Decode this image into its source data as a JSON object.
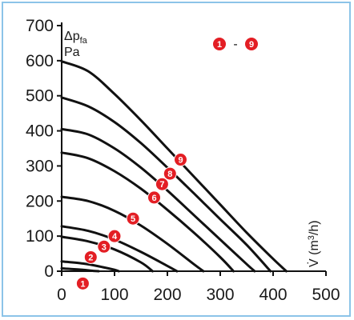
{
  "chart_data": {
    "type": "line",
    "ylabel": {
      "main": "Δp",
      "sub": "fa",
      "unit": "Pa"
    },
    "xlabel": {
      "main": "V̇ (m",
      "sup": "3",
      "tail": "/h)"
    },
    "legend": {
      "from": "1",
      "sep": "-",
      "to": "9",
      "placement": "top-right"
    },
    "xlim": [
      0,
      500
    ],
    "ylim": [
      0,
      700
    ],
    "x_ticks": [
      "0",
      "100",
      "200",
      "300",
      "400",
      "500"
    ],
    "y_ticks": [
      "0",
      "100",
      "200",
      "300",
      "400",
      "500",
      "600",
      "700"
    ],
    "grid": false,
    "marker_color": "#e31e24",
    "curve_color": "#111111",
    "series": [
      {
        "name": "1",
        "marker": [
          40,
          -35
        ],
        "points": [
          [
            0,
            8
          ],
          [
            20,
            6
          ],
          [
            40,
            4
          ],
          [
            60,
            1
          ],
          [
            70,
            0
          ]
        ]
      },
      {
        "name": "2",
        "marker": [
          55,
          40
        ],
        "points": [
          [
            0,
            28
          ],
          [
            40,
            22
          ],
          [
            70,
            14
          ],
          [
            100,
            4
          ],
          [
            108,
            0
          ]
        ]
      },
      {
        "name": "3",
        "marker": [
          80,
          70
        ],
        "points": [
          [
            0,
            98
          ],
          [
            50,
            85
          ],
          [
            100,
            62
          ],
          [
            150,
            25
          ],
          [
            172,
            0
          ]
        ]
      },
      {
        "name": "4",
        "marker": [
          100,
          100
        ],
        "points": [
          [
            0,
            128
          ],
          [
            50,
            115
          ],
          [
            100,
            90
          ],
          [
            150,
            55
          ],
          [
            200,
            15
          ],
          [
            218,
            0
          ]
        ]
      },
      {
        "name": "5",
        "marker": [
          135,
          150
        ],
        "points": [
          [
            0,
            212
          ],
          [
            50,
            200
          ],
          [
            100,
            172
          ],
          [
            150,
            130
          ],
          [
            200,
            78
          ],
          [
            250,
            20
          ],
          [
            268,
            0
          ]
        ]
      },
      {
        "name": "6",
        "marker": [
          175,
          210
        ],
        "points": [
          [
            0,
            338
          ],
          [
            50,
            322
          ],
          [
            100,
            285
          ],
          [
            150,
            235
          ],
          [
            200,
            175
          ],
          [
            250,
            110
          ],
          [
            300,
            40
          ],
          [
            325,
            0
          ]
        ]
      },
      {
        "name": "7",
        "marker": [
          190,
          248
        ],
        "points": [
          [
            0,
            405
          ],
          [
            50,
            390
          ],
          [
            100,
            350
          ],
          [
            150,
            295
          ],
          [
            200,
            230
          ],
          [
            250,
            160
          ],
          [
            300,
            90
          ],
          [
            350,
            20
          ],
          [
            365,
            0
          ]
        ]
      },
      {
        "name": "8",
        "marker": [
          205,
          278
        ],
        "points": [
          [
            0,
            495
          ],
          [
            50,
            470
          ],
          [
            100,
            425
          ],
          [
            150,
            365
          ],
          [
            200,
            295
          ],
          [
            250,
            222
          ],
          [
            300,
            148
          ],
          [
            350,
            75
          ],
          [
            395,
            0
          ]
        ]
      },
      {
        "name": "9",
        "marker": [
          225,
          318
        ],
        "points": [
          [
            0,
            598
          ],
          [
            50,
            570
          ],
          [
            100,
            505
          ],
          [
            150,
            430
          ],
          [
            200,
            350
          ],
          [
            250,
            270
          ],
          [
            300,
            190
          ],
          [
            350,
            110
          ],
          [
            400,
            35
          ],
          [
            425,
            0
          ]
        ]
      }
    ]
  }
}
